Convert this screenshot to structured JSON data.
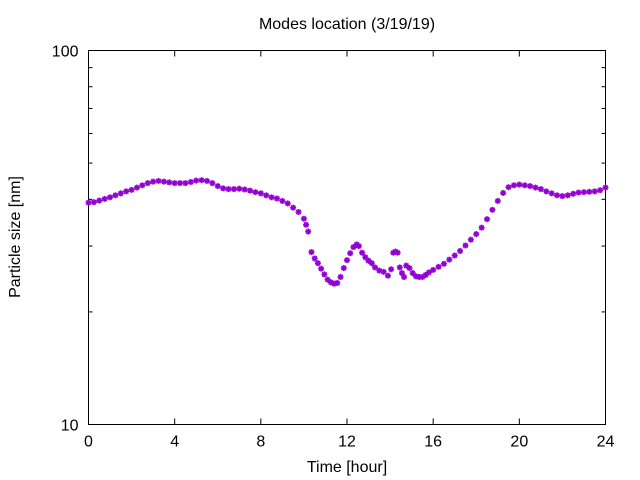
{
  "chart_data": {
    "type": "scatter",
    "title": "Modes location (3/19/19)",
    "xlabel": "Time [hour]",
    "ylabel": "Particle size [nm]",
    "xlim": [
      0,
      24
    ],
    "ylim": [
      10,
      100
    ],
    "yscale": "log",
    "grid": false,
    "legend": "none",
    "xticks": [
      0,
      4,
      8,
      12,
      16,
      20,
      24
    ],
    "yticks": [
      10,
      100
    ],
    "marker_color": "#9400d3",
    "x": [
      0.0,
      0.25,
      0.5,
      0.75,
      1.0,
      1.25,
      1.5,
      1.75,
      2.0,
      2.25,
      2.5,
      2.75,
      3.0,
      3.25,
      3.5,
      3.75,
      4.0,
      4.25,
      4.5,
      4.75,
      5.0,
      5.25,
      5.5,
      5.75,
      6.0,
      6.25,
      6.5,
      6.75,
      7.0,
      7.25,
      7.5,
      7.75,
      8.0,
      8.25,
      8.5,
      8.75,
      9.0,
      9.25,
      9.5,
      9.75,
      10.0,
      10.1,
      10.2,
      10.35,
      10.5,
      10.65,
      10.8,
      10.95,
      11.1,
      11.25,
      11.4,
      11.55,
      11.7,
      11.85,
      12.0,
      12.15,
      12.3,
      12.45,
      12.55,
      12.7,
      12.85,
      13.0,
      13.15,
      13.3,
      13.5,
      13.7,
      13.9,
      14.05,
      14.15,
      14.25,
      14.35,
      14.45,
      14.55,
      14.65,
      14.75,
      14.9,
      15.05,
      15.2,
      15.35,
      15.5,
      15.65,
      15.8,
      16.0,
      16.25,
      16.5,
      16.75,
      17.0,
      17.25,
      17.5,
      17.75,
      18.0,
      18.25,
      18.5,
      18.75,
      19.0,
      19.25,
      19.5,
      19.75,
      20.0,
      20.25,
      20.5,
      20.75,
      21.0,
      21.25,
      21.5,
      21.75,
      22.0,
      22.25,
      22.5,
      22.75,
      23.0,
      23.25,
      23.5,
      23.75,
      24.0
    ],
    "y": [
      39.2,
      39.3,
      39.7,
      40.1,
      40.5,
      41.0,
      41.5,
      42.0,
      42.4,
      43.0,
      43.6,
      44.2,
      44.6,
      44.8,
      44.6,
      44.4,
      44.2,
      44.2,
      44.2,
      44.5,
      44.9,
      45.0,
      44.8,
      44.2,
      43.4,
      42.8,
      42.6,
      42.6,
      42.7,
      42.5,
      42.2,
      41.8,
      41.5,
      41.0,
      40.5,
      40.2,
      39.6,
      39.0,
      38.0,
      37.0,
      35.5,
      34.2,
      32.8,
      28.9,
      27.8,
      27.0,
      26.1,
      25.2,
      24.4,
      24.0,
      23.8,
      23.9,
      24.8,
      26.2,
      27.5,
      28.7,
      29.8,
      30.3,
      30.0,
      28.8,
      28.0,
      27.4,
      27.0,
      26.3,
      25.8,
      25.6,
      25.0,
      26.0,
      28.8,
      29.0,
      28.8,
      26.3,
      25.4,
      24.8,
      26.6,
      26.2,
      25.4,
      24.9,
      24.8,
      24.8,
      25.1,
      25.5,
      25.9,
      26.4,
      26.9,
      27.6,
      28.3,
      29.1,
      30.1,
      31.2,
      32.3,
      33.6,
      35.4,
      37.5,
      39.6,
      41.6,
      43.1,
      43.6,
      43.8,
      43.6,
      43.4,
      43.0,
      42.6,
      42.0,
      41.5,
      41.0,
      40.8,
      41.0,
      41.4,
      41.7,
      41.8,
      41.9,
      42.0,
      42.3,
      43.0
    ]
  }
}
